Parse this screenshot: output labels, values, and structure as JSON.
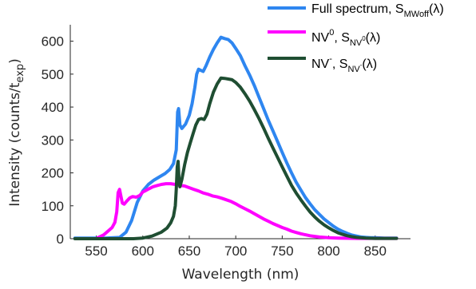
{
  "chart_data": {
    "type": "line",
    "xlabel": "Wavelength (nm)",
    "ylabel_main": "Intensity (counts/t",
    "ylabel_sub": "exp",
    "ylabel_close": ")",
    "xlim": [
      522,
      888
    ],
    "ylim": [
      0,
      650
    ],
    "xticks": [
      550,
      600,
      650,
      700,
      750,
      800,
      850
    ],
    "yticks": [
      0,
      100,
      200,
      300,
      400,
      500,
      600
    ],
    "grid": false,
    "legend_position": "top-right",
    "series": [
      {
        "id": "full",
        "legend": {
          "main": "Full spectrum, S",
          "sub": "MWoff",
          "tail": "(λ)"
        },
        "color": "#2e86f0",
        "points": [
          [
            527,
            2
          ],
          [
            560,
            2
          ],
          [
            575,
            4
          ],
          [
            582,
            20
          ],
          [
            588,
            55
          ],
          [
            594,
            110
          ],
          [
            600,
            145
          ],
          [
            606,
            165
          ],
          [
            612,
            178
          ],
          [
            618,
            188
          ],
          [
            624,
            198
          ],
          [
            629,
            210
          ],
          [
            633,
            228
          ],
          [
            636,
            270
          ],
          [
            637.5,
            385
          ],
          [
            638.5,
            395
          ],
          [
            640,
            345
          ],
          [
            642,
            335
          ],
          [
            646,
            348
          ],
          [
            650,
            375
          ],
          [
            653,
            410
          ],
          [
            656,
            460
          ],
          [
            658,
            500
          ],
          [
            660,
            515
          ],
          [
            662,
            512
          ],
          [
            665,
            508
          ],
          [
            668,
            525
          ],
          [
            672,
            552
          ],
          [
            676,
            575
          ],
          [
            680,
            595
          ],
          [
            684,
            612
          ],
          [
            688,
            608
          ],
          [
            692,
            605
          ],
          [
            696,
            595
          ],
          [
            700,
            578
          ],
          [
            705,
            556
          ],
          [
            710,
            525
          ],
          [
            715,
            497
          ],
          [
            720,
            465
          ],
          [
            725,
            430
          ],
          [
            730,
            395
          ],
          [
            735,
            360
          ],
          [
            740,
            328
          ],
          [
            745,
            295
          ],
          [
            750,
            262
          ],
          [
            755,
            230
          ],
          [
            760,
            200
          ],
          [
            765,
            172
          ],
          [
            770,
            148
          ],
          [
            775,
            125
          ],
          [
            780,
            106
          ],
          [
            785,
            88
          ],
          [
            790,
            74
          ],
          [
            795,
            60
          ],
          [
            800,
            49
          ],
          [
            805,
            38
          ],
          [
            810,
            29
          ],
          [
            815,
            22
          ],
          [
            820,
            16
          ],
          [
            825,
            11
          ],
          [
            830,
            8
          ],
          [
            835,
            5
          ],
          [
            840,
            4
          ],
          [
            845,
            3
          ],
          [
            850,
            3
          ],
          [
            860,
            2
          ],
          [
            873,
            2
          ]
        ]
      },
      {
        "id": "nv0",
        "legend": {
          "main": "NV",
          "sup": "0",
          "mid": ", S",
          "sub": "NV",
          "subsup": "0",
          "tail": "(λ)"
        },
        "color": "#ff00ff",
        "points": [
          [
            551,
            2
          ],
          [
            558,
            12
          ],
          [
            563,
            24
          ],
          [
            567,
            34
          ],
          [
            570,
            50
          ],
          [
            572,
            82
          ],
          [
            573.5,
            140
          ],
          [
            575,
            150
          ],
          [
            576,
            135
          ],
          [
            578,
            108
          ],
          [
            580,
            105
          ],
          [
            583,
            115
          ],
          [
            586,
            124
          ],
          [
            589,
            128
          ],
          [
            593,
            126
          ],
          [
            597,
            132
          ],
          [
            600,
            142
          ],
          [
            603,
            146
          ],
          [
            607,
            152
          ],
          [
            611,
            158
          ],
          [
            615,
            161
          ],
          [
            620,
            165
          ],
          [
            625,
            167
          ],
          [
            630,
            167
          ],
          [
            635,
            165
          ],
          [
            640,
            162
          ],
          [
            645,
            160
          ],
          [
            650,
            155
          ],
          [
            655,
            150
          ],
          [
            660,
            145
          ],
          [
            665,
            139
          ],
          [
            670,
            135
          ],
          [
            675,
            130
          ],
          [
            680,
            127
          ],
          [
            685,
            123
          ],
          [
            690,
            118
          ],
          [
            695,
            113
          ],
          [
            700,
            106
          ],
          [
            705,
            98
          ],
          [
            710,
            91
          ],
          [
            715,
            84
          ],
          [
            720,
            76
          ],
          [
            725,
            68
          ],
          [
            730,
            60
          ],
          [
            735,
            53
          ],
          [
            740,
            46
          ],
          [
            745,
            40
          ],
          [
            750,
            34
          ],
          [
            755,
            29
          ],
          [
            760,
            23
          ],
          [
            765,
            19
          ],
          [
            770,
            15
          ],
          [
            775,
            12
          ],
          [
            780,
            9
          ],
          [
            785,
            7
          ],
          [
            790,
            5
          ],
          [
            800,
            3
          ],
          [
            810,
            2
          ],
          [
            830,
            1
          ],
          [
            873,
            1
          ]
        ]
      },
      {
        "id": "nvm",
        "legend": {
          "main": "NV",
          "sup": "-",
          "mid": ", S",
          "sub": "NV",
          "subsup": "-",
          "tail": "(λ)"
        },
        "color": "#1f4e32",
        "points": [
          [
            527,
            0
          ],
          [
            590,
            0
          ],
          [
            600,
            2
          ],
          [
            610,
            8
          ],
          [
            620,
            20
          ],
          [
            626,
            32
          ],
          [
            630,
            48
          ],
          [
            633,
            68
          ],
          [
            635,
            100
          ],
          [
            636,
            150
          ],
          [
            637,
            218
          ],
          [
            638,
            235
          ],
          [
            639,
            175
          ],
          [
            640,
            158
          ],
          [
            642,
            180
          ],
          [
            645,
            225
          ],
          [
            648,
            262
          ],
          [
            651,
            290
          ],
          [
            654,
            318
          ],
          [
            657,
            345
          ],
          [
            660,
            362
          ],
          [
            663,
            365
          ],
          [
            666,
            362
          ],
          [
            669,
            378
          ],
          [
            672,
            410
          ],
          [
            676,
            445
          ],
          [
            680,
            470
          ],
          [
            684,
            488
          ],
          [
            688,
            487
          ],
          [
            692,
            485
          ],
          [
            696,
            483
          ],
          [
            700,
            475
          ],
          [
            705,
            460
          ],
          [
            710,
            440
          ],
          [
            715,
            418
          ],
          [
            720,
            392
          ],
          [
            725,
            365
          ],
          [
            730,
            336
          ],
          [
            735,
            305
          ],
          [
            740,
            276
          ],
          [
            745,
            247
          ],
          [
            750,
            218
          ],
          [
            755,
            190
          ],
          [
            760,
            162
          ],
          [
            765,
            139
          ],
          [
            770,
            118
          ],
          [
            775,
            99
          ],
          [
            780,
            81
          ],
          [
            785,
            66
          ],
          [
            790,
            53
          ],
          [
            795,
            42
          ],
          [
            800,
            33
          ],
          [
            805,
            25
          ],
          [
            810,
            18
          ],
          [
            815,
            13
          ],
          [
            820,
            9
          ],
          [
            825,
            6
          ],
          [
            830,
            4
          ],
          [
            840,
            2
          ],
          [
            850,
            1
          ],
          [
            873,
            1
          ]
        ]
      }
    ]
  }
}
